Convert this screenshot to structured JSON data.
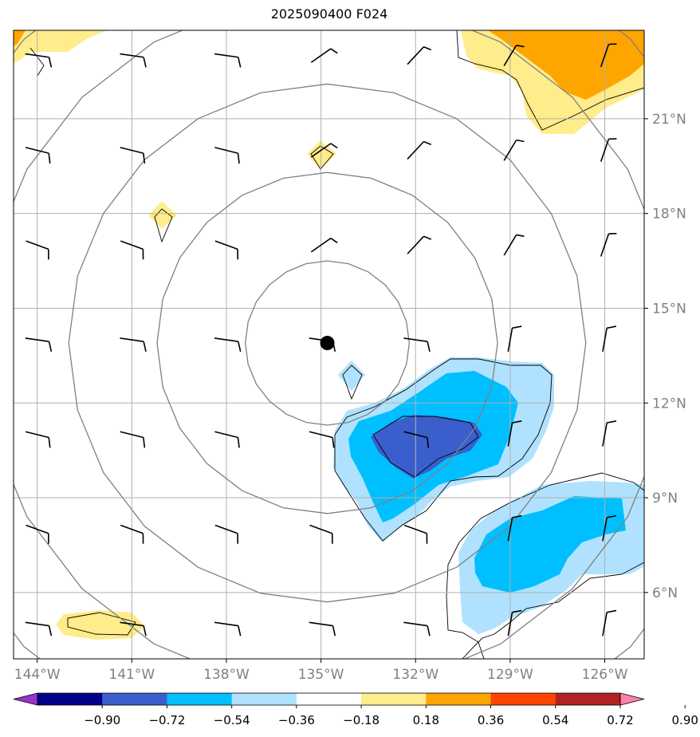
{
  "title": "2025090400 F024",
  "lon_ticks": [
    {
      "v": -144,
      "label": "144°W"
    },
    {
      "v": -141,
      "label": "141°W"
    },
    {
      "v": -138,
      "label": "138°W"
    },
    {
      "v": -135,
      "label": "135°W"
    },
    {
      "v": -132,
      "label": "132°W"
    },
    {
      "v": -129,
      "label": "129°W"
    },
    {
      "v": -126,
      "label": "126°W"
    }
  ],
  "lat_ticks": [
    {
      "v": 6,
      "label": "6°N"
    },
    {
      "v": 9,
      "label": "9°N"
    },
    {
      "v": 12,
      "label": "12°N"
    },
    {
      "v": 15,
      "label": "15°N"
    },
    {
      "v": 18,
      "label": "18°N"
    },
    {
      "v": 21,
      "label": "21°N"
    }
  ],
  "extent": {
    "lon": [
      -144.75,
      -124.75
    ],
    "lat": [
      3.9,
      23.8
    ]
  },
  "center": {
    "lon": -134.8,
    "lat": 13.9
  },
  "range_ring_radii_deg": [
    2.6,
    5.4,
    8.2,
    11.0,
    13.6
  ],
  "colorbar": {
    "labels": [
      "−0.90",
      "−0.72",
      "−0.54",
      "−0.36",
      "−0.18",
      "0.18",
      "0.36",
      "0.54",
      "0.72",
      "0.90"
    ],
    "colors": [
      "#9932cc",
      "#00008b",
      "#3a5fcd",
      "#00bfff",
      "#b0e2ff",
      "#ffffff",
      "#ffec8b",
      "#ffa500",
      "#ff4500",
      "#b22222",
      "#ff82ab"
    ]
  },
  "colors": {
    "grid": "#b0b0b0",
    "ring": "#808080",
    "tick_label": "#808080",
    "center_marker": "#000000"
  },
  "wind_barbs": {
    "lons": [
      -144,
      -141,
      -138,
      -135,
      -132,
      -129,
      -126
    ],
    "lats": [
      23,
      20,
      17,
      14,
      11,
      8,
      5
    ],
    "icon": "wind-barb-icon"
  }
}
